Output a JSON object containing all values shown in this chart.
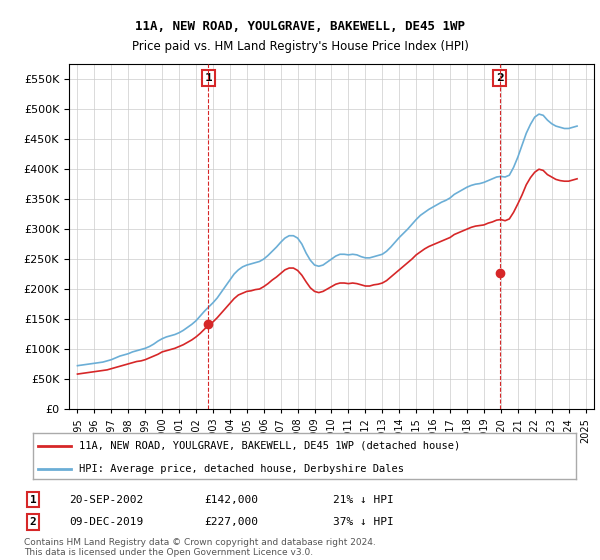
{
  "title": "11A, NEW ROAD, YOULGRAVE, BAKEWELL, DE45 1WP",
  "subtitle": "Price paid vs. HM Land Registry's House Price Index (HPI)",
  "ylim": [
    0,
    575000
  ],
  "yticks": [
    0,
    50000,
    100000,
    150000,
    200000,
    250000,
    300000,
    350000,
    400000,
    450000,
    500000,
    550000
  ],
  "xlim": [
    1994.5,
    2025.5
  ],
  "xticks": [
    1995,
    1996,
    1997,
    1998,
    1999,
    2000,
    2001,
    2002,
    2003,
    2004,
    2005,
    2006,
    2007,
    2008,
    2009,
    2010,
    2011,
    2012,
    2013,
    2014,
    2015,
    2016,
    2017,
    2018,
    2019,
    2020,
    2021,
    2022,
    2023,
    2024,
    2025
  ],
  "hpi_color": "#6baed6",
  "price_color": "#d62728",
  "marker_box_color": "#d62728",
  "purchase1_x": 2002.72,
  "purchase1_y": 142000,
  "purchase1_label": "1",
  "purchase2_x": 2019.93,
  "purchase2_y": 227000,
  "purchase2_label": "2",
  "legend_price_label": "11A, NEW ROAD, YOULGRAVE, BAKEWELL, DE45 1WP (detached house)",
  "legend_hpi_label": "HPI: Average price, detached house, Derbyshire Dales",
  "annot1_num": "1",
  "annot1_date": "20-SEP-2002",
  "annot1_price": "£142,000",
  "annot1_pct": "21% ↓ HPI",
  "annot2_num": "2",
  "annot2_date": "09-DEC-2019",
  "annot2_price": "£227,000",
  "annot2_pct": "37% ↓ HPI",
  "footer": "Contains HM Land Registry data © Crown copyright and database right 2024.\nThis data is licensed under the Open Government Licence v3.0.",
  "background_color": "#ffffff",
  "grid_color": "#cccccc",
  "hpi_data_x": [
    1995.0,
    1995.25,
    1995.5,
    1995.75,
    1996.0,
    1996.25,
    1996.5,
    1996.75,
    1997.0,
    1997.25,
    1997.5,
    1997.75,
    1998.0,
    1998.25,
    1998.5,
    1998.75,
    1999.0,
    1999.25,
    1999.5,
    1999.75,
    2000.0,
    2000.25,
    2000.5,
    2000.75,
    2001.0,
    2001.25,
    2001.5,
    2001.75,
    2002.0,
    2002.25,
    2002.5,
    2002.75,
    2003.0,
    2003.25,
    2003.5,
    2003.75,
    2004.0,
    2004.25,
    2004.5,
    2004.75,
    2005.0,
    2005.25,
    2005.5,
    2005.75,
    2006.0,
    2006.25,
    2006.5,
    2006.75,
    2007.0,
    2007.25,
    2007.5,
    2007.75,
    2008.0,
    2008.25,
    2008.5,
    2008.75,
    2009.0,
    2009.25,
    2009.5,
    2009.75,
    2010.0,
    2010.25,
    2010.5,
    2010.75,
    2011.0,
    2011.25,
    2011.5,
    2011.75,
    2012.0,
    2012.25,
    2012.5,
    2012.75,
    2013.0,
    2013.25,
    2013.5,
    2013.75,
    2014.0,
    2014.25,
    2014.5,
    2014.75,
    2015.0,
    2015.25,
    2015.5,
    2015.75,
    2016.0,
    2016.25,
    2016.5,
    2016.75,
    2017.0,
    2017.25,
    2017.5,
    2017.75,
    2018.0,
    2018.25,
    2018.5,
    2018.75,
    2019.0,
    2019.25,
    2019.5,
    2019.75,
    2020.0,
    2020.25,
    2020.5,
    2020.75,
    2021.0,
    2021.25,
    2021.5,
    2021.75,
    2022.0,
    2022.25,
    2022.5,
    2022.75,
    2023.0,
    2023.25,
    2023.5,
    2023.75,
    2024.0,
    2024.25,
    2024.5
  ],
  "hpi_data_y": [
    72000,
    73000,
    74000,
    75000,
    76000,
    77000,
    78000,
    80000,
    82000,
    85000,
    88000,
    90000,
    92000,
    95000,
    97000,
    99000,
    101000,
    104000,
    108000,
    113000,
    117000,
    120000,
    122000,
    124000,
    127000,
    131000,
    136000,
    141000,
    147000,
    155000,
    163000,
    170000,
    177000,
    185000,
    195000,
    205000,
    215000,
    225000,
    232000,
    237000,
    240000,
    242000,
    244000,
    246000,
    250000,
    256000,
    263000,
    270000,
    278000,
    285000,
    289000,
    289000,
    285000,
    275000,
    260000,
    248000,
    240000,
    238000,
    240000,
    245000,
    250000,
    255000,
    258000,
    258000,
    257000,
    258000,
    257000,
    254000,
    252000,
    252000,
    254000,
    256000,
    258000,
    263000,
    270000,
    278000,
    286000,
    293000,
    300000,
    308000,
    316000,
    323000,
    328000,
    333000,
    337000,
    341000,
    345000,
    348000,
    352000,
    358000,
    362000,
    366000,
    370000,
    373000,
    375000,
    376000,
    378000,
    381000,
    384000,
    387000,
    388000,
    387000,
    390000,
    403000,
    420000,
    440000,
    460000,
    475000,
    487000,
    492000,
    490000,
    482000,
    476000,
    472000,
    470000,
    468000,
    468000,
    470000,
    472000
  ],
  "price_data_x": [
    1995.0,
    1995.25,
    1995.5,
    1995.75,
    1996.0,
    1996.25,
    1996.5,
    1996.75,
    1997.0,
    1997.25,
    1997.5,
    1997.75,
    1998.0,
    1998.25,
    1998.5,
    1998.75,
    1999.0,
    1999.25,
    1999.5,
    1999.75,
    2000.0,
    2000.25,
    2000.5,
    2000.75,
    2001.0,
    2001.25,
    2001.5,
    2001.75,
    2002.0,
    2002.25,
    2002.5,
    2002.75,
    2003.0,
    2003.25,
    2003.5,
    2003.75,
    2004.0,
    2004.25,
    2004.5,
    2004.75,
    2005.0,
    2005.25,
    2005.5,
    2005.75,
    2006.0,
    2006.25,
    2006.5,
    2006.75,
    2007.0,
    2007.25,
    2007.5,
    2007.75,
    2008.0,
    2008.25,
    2008.5,
    2008.75,
    2009.0,
    2009.25,
    2009.5,
    2009.75,
    2010.0,
    2010.25,
    2010.5,
    2010.75,
    2011.0,
    2011.25,
    2011.5,
    2011.75,
    2012.0,
    2012.25,
    2012.5,
    2012.75,
    2013.0,
    2013.25,
    2013.5,
    2013.75,
    2014.0,
    2014.25,
    2014.5,
    2014.75,
    2015.0,
    2015.25,
    2015.5,
    2015.75,
    2016.0,
    2016.25,
    2016.5,
    2016.75,
    2017.0,
    2017.25,
    2017.5,
    2017.75,
    2018.0,
    2018.25,
    2018.5,
    2018.75,
    2019.0,
    2019.25,
    2019.5,
    2019.75,
    2020.0,
    2020.25,
    2020.5,
    2020.75,
    2021.0,
    2021.25,
    2021.5,
    2021.75,
    2022.0,
    2022.25,
    2022.5,
    2022.75,
    2023.0,
    2023.25,
    2023.5,
    2023.75,
    2024.0,
    2024.25,
    2024.5
  ],
  "price_data_y": [
    58000,
    59000,
    60000,
    61000,
    62000,
    63000,
    64000,
    65000,
    67000,
    69000,
    71000,
    73000,
    75000,
    77000,
    79000,
    80000,
    82000,
    85000,
    88000,
    91000,
    95000,
    97000,
    99000,
    101000,
    104000,
    107000,
    111000,
    115000,
    120000,
    126000,
    133000,
    140000,
    145000,
    152000,
    160000,
    168000,
    176000,
    184000,
    190000,
    193000,
    196000,
    197000,
    199000,
    200000,
    204000,
    209000,
    215000,
    220000,
    226000,
    232000,
    235000,
    235000,
    231000,
    223000,
    212000,
    202000,
    196000,
    194000,
    196000,
    200000,
    204000,
    208000,
    210000,
    210000,
    209000,
    210000,
    209000,
    207000,
    205000,
    205000,
    207000,
    208000,
    210000,
    214000,
    220000,
    226000,
    232000,
    238000,
    244000,
    250000,
    257000,
    262000,
    267000,
    271000,
    274000,
    277000,
    280000,
    283000,
    286000,
    291000,
    294000,
    297000,
    300000,
    303000,
    305000,
    306000,
    307000,
    310000,
    312000,
    315000,
    316000,
    314000,
    317000,
    328000,
    342000,
    357000,
    374000,
    386000,
    395000,
    400000,
    398000,
    391000,
    387000,
    383000,
    381000,
    380000,
    380000,
    382000,
    384000
  ]
}
